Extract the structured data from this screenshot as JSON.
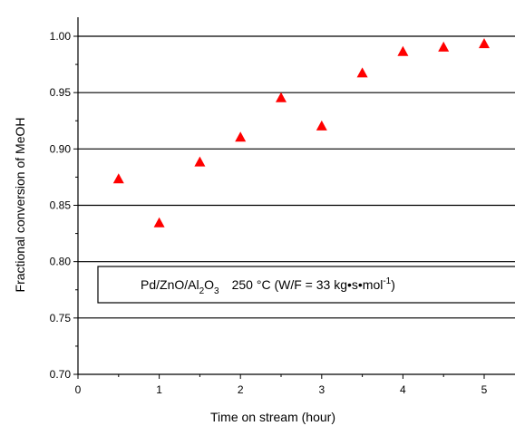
{
  "chart_data": {
    "type": "scatter",
    "title": "",
    "xlabel": "Time on stream (hour)",
    "ylabel": "Fractional conversion of MeOH",
    "xlim": [
      0,
      5.4
    ],
    "ylim": [
      0.7,
      1.02
    ],
    "x_ticks": [
      0,
      1,
      2,
      3,
      4,
      5
    ],
    "y_ticks": [
      0.7,
      0.75,
      0.8,
      0.85,
      0.9,
      0.95,
      1.0
    ],
    "x_tick_labels": [
      "0",
      "1",
      "2",
      "3",
      "4",
      "5"
    ],
    "y_tick_labels": [
      "0.70",
      "0.75",
      "0.80",
      "0.85",
      "0.90",
      "0.95",
      "1.00"
    ],
    "grid": "horizontal",
    "marker": "triangle",
    "color": "#ff0000",
    "series": [
      {
        "x": [
          0.5,
          1.0,
          1.5,
          2.0,
          2.5,
          3.0,
          3.5,
          4.0,
          4.5,
          5.0
        ],
        "y": [
          0.873,
          0.834,
          0.888,
          0.91,
          0.945,
          0.92,
          0.967,
          0.986,
          0.99,
          0.993
        ]
      }
    ],
    "annotation": {
      "catalyst_prefix": "Pd/ZnO/Al",
      "sub_2": "2",
      "o_text": "O",
      "sub_3": "3",
      "condition": "250 °C (W/F = 33 kg•s•mol",
      "exponent": "-1",
      "close": ")"
    }
  }
}
